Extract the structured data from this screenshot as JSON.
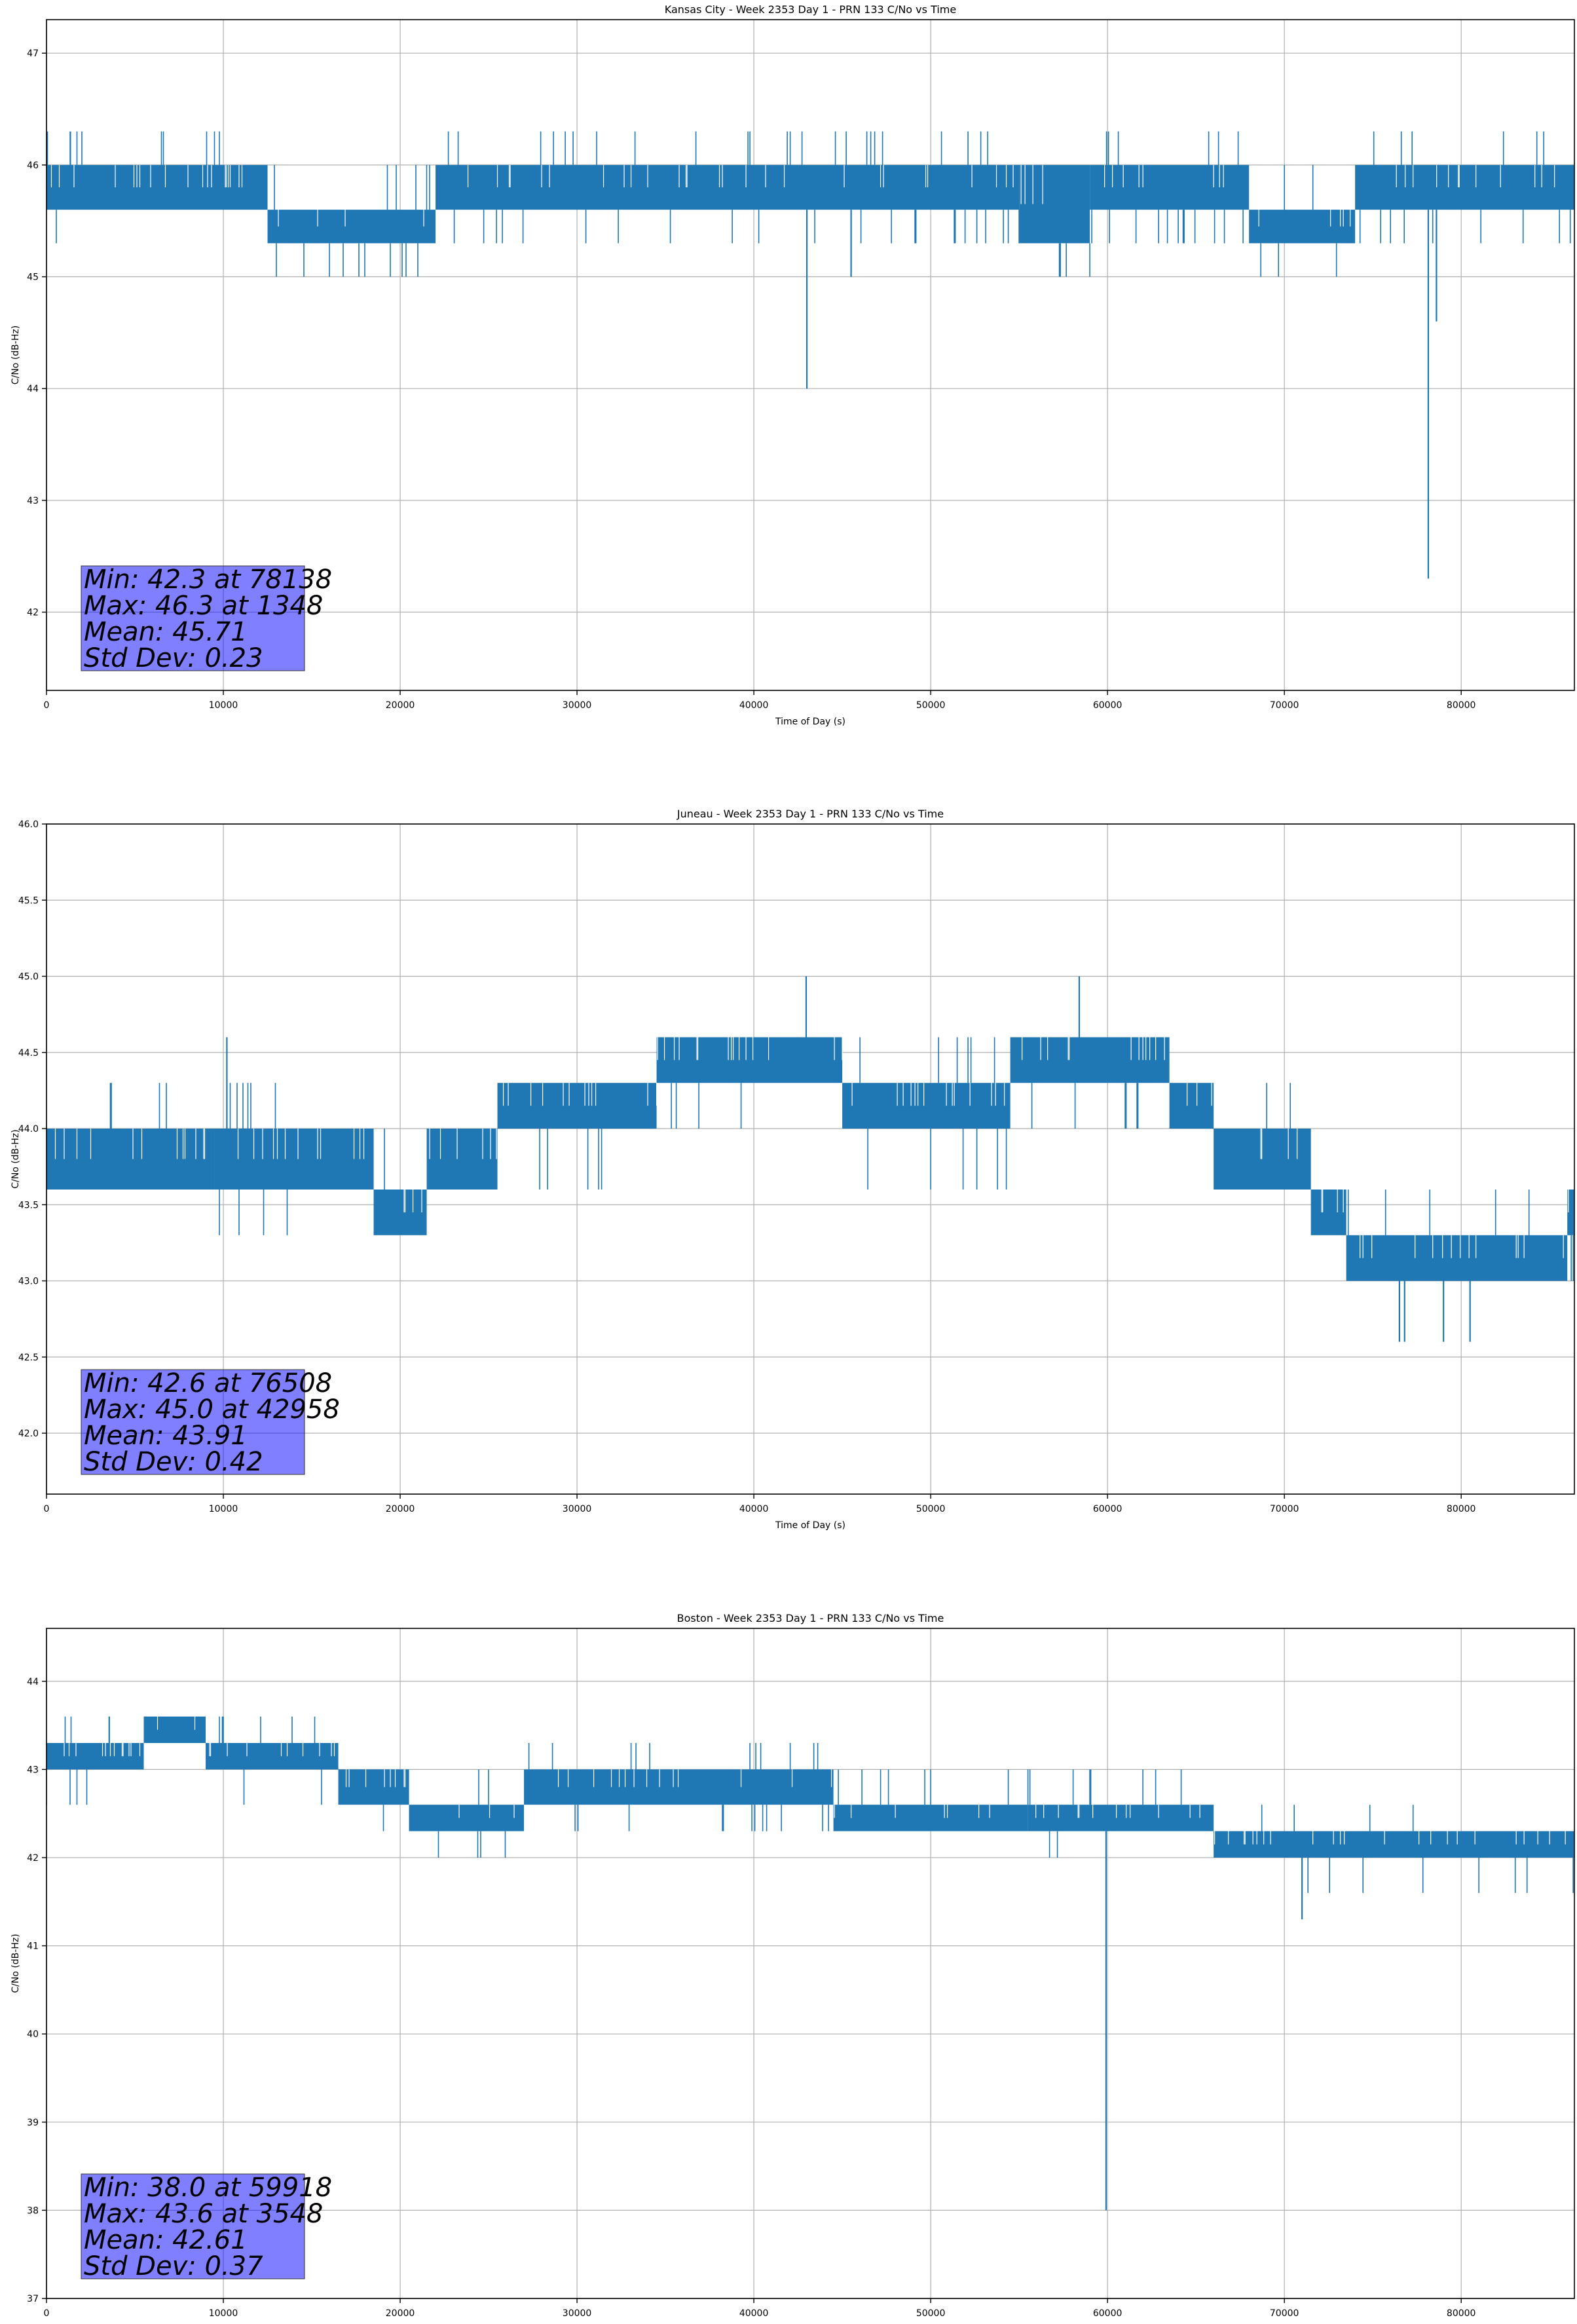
{
  "chart_data": [
    {
      "type": "line",
      "title": "Kansas City - Week 2353 Day 1 - PRN 133 C/No vs Time",
      "xlabel": "Time of Day (s)",
      "ylabel": "C/No (dB-Hz)",
      "xlim": [
        0,
        86400
      ],
      "ylim": [
        41.3,
        47.3
      ],
      "xticks": [
        0,
        10000,
        20000,
        30000,
        40000,
        50000,
        60000,
        70000,
        80000
      ],
      "yticks": [
        42,
        43,
        44,
        45,
        46,
        47
      ],
      "grid": true,
      "color": "#1f77b4",
      "levels": [
        45.3,
        45.6,
        46.0
      ],
      "segments": [
        {
          "x0": 0,
          "x1": 12500,
          "lo": 45.6,
          "hi": 46.0,
          "up": 46.3,
          "down": 45.3
        },
        {
          "x0": 12500,
          "x1": 22000,
          "lo": 45.3,
          "hi": 45.6,
          "up": 46.0,
          "down": 45.0
        },
        {
          "x0": 22000,
          "x1": 55000,
          "lo": 45.6,
          "hi": 46.0,
          "up": 46.3,
          "down": 45.3
        },
        {
          "x0": 55000,
          "x1": 59000,
          "lo": 45.3,
          "hi": 46.0,
          "up": 46.0,
          "down": 45.0
        },
        {
          "x0": 59000,
          "x1": 68000,
          "lo": 45.6,
          "hi": 46.0,
          "up": 46.3,
          "down": 45.3
        },
        {
          "x0": 68000,
          "x1": 74000,
          "lo": 45.3,
          "hi": 45.6,
          "up": 46.0,
          "down": 45.0
        },
        {
          "x0": 74000,
          "x1": 86400,
          "lo": 45.6,
          "hi": 46.0,
          "up": 46.3,
          "down": 45.3
        }
      ],
      "spikes": [
        {
          "x": 1348,
          "y": 46.3
        },
        {
          "x": 43000,
          "y": 44.0
        },
        {
          "x": 45500,
          "y": 45.0
        },
        {
          "x": 78138,
          "y": 42.3
        },
        {
          "x": 78600,
          "y": 44.6
        }
      ],
      "stats": {
        "min": "Min: 42.3 at 78138",
        "max": "Max: 46.3 at 1348",
        "mean": "Mean: 45.71",
        "std": "Std Dev: 0.23"
      }
    },
    {
      "type": "line",
      "title": "Juneau - Week 2353 Day 1 - PRN 133 C/No vs Time",
      "xlabel": "Time of Day (s)",
      "ylabel": "C/No (dB-Hz)",
      "xlim": [
        0,
        86400
      ],
      "ylim": [
        41.6,
        46.0
      ],
      "xticks": [
        0,
        10000,
        20000,
        30000,
        40000,
        50000,
        60000,
        70000,
        80000
      ],
      "yticks": [
        42.0,
        42.5,
        43.0,
        43.5,
        44.0,
        44.5,
        45.0,
        45.5,
        46.0
      ],
      "ytick_labels": [
        "42.0",
        "42.5",
        "43.0",
        "43.5",
        "44.0",
        "44.5",
        "45.0",
        "45.5",
        "46.0"
      ],
      "grid": true,
      "color": "#1f77b4",
      "segments": [
        {
          "x0": 0,
          "x1": 9500,
          "lo": 43.6,
          "hi": 44.0,
          "up": 44.3,
          "down": 43.6
        },
        {
          "x0": 9500,
          "x1": 18500,
          "lo": 43.6,
          "hi": 44.0,
          "up": 44.3,
          "down": 43.3
        },
        {
          "x0": 18500,
          "x1": 21500,
          "lo": 43.3,
          "hi": 43.6,
          "up": 44.0,
          "down": 43.3
        },
        {
          "x0": 21500,
          "x1": 25500,
          "lo": 43.6,
          "hi": 44.0,
          "up": 44.0,
          "down": 43.6
        },
        {
          "x0": 25500,
          "x1": 34500,
          "lo": 44.0,
          "hi": 44.3,
          "up": 44.3,
          "down": 43.6
        },
        {
          "x0": 34500,
          "x1": 45000,
          "lo": 44.3,
          "hi": 44.6,
          "up": 44.6,
          "down": 44.0
        },
        {
          "x0": 45000,
          "x1": 54500,
          "lo": 44.0,
          "hi": 44.3,
          "up": 44.6,
          "down": 43.6
        },
        {
          "x0": 54500,
          "x1": 63500,
          "lo": 44.3,
          "hi": 44.6,
          "up": 44.6,
          "down": 44.0
        },
        {
          "x0": 63500,
          "x1": 66000,
          "lo": 44.0,
          "hi": 44.3,
          "up": 44.3,
          "down": 44.0
        },
        {
          "x0": 66000,
          "x1": 71500,
          "lo": 43.6,
          "hi": 44.0,
          "up": 44.3,
          "down": 43.6
        },
        {
          "x0": 71500,
          "x1": 73500,
          "lo": 43.3,
          "hi": 43.6,
          "up": 43.6,
          "down": 43.3
        },
        {
          "x0": 73500,
          "x1": 86000,
          "lo": 43.0,
          "hi": 43.3,
          "up": 43.6,
          "down": 43.0
        },
        {
          "x0": 86000,
          "x1": 86400,
          "lo": 43.3,
          "hi": 43.6,
          "up": 43.6,
          "down": 43.0
        }
      ],
      "spikes": [
        {
          "x": 10200,
          "y": 44.6
        },
        {
          "x": 42958,
          "y": 45.0
        },
        {
          "x": 58400,
          "y": 45.0
        },
        {
          "x": 76508,
          "y": 42.6
        },
        {
          "x": 76800,
          "y": 42.6
        },
        {
          "x": 79000,
          "y": 42.6
        },
        {
          "x": 80500,
          "y": 42.6
        }
      ],
      "stats": {
        "min": "Min: 42.6 at 76508",
        "max": "Max: 45.0 at 42958",
        "mean": "Mean: 43.91",
        "std": "Std Dev: 0.42"
      }
    },
    {
      "type": "line",
      "title": "Boston - Week 2353 Day 1 - PRN 133 C/No vs Time",
      "xlabel": "Time of Day (s)",
      "ylabel": "C/No (dB-Hz)",
      "xlim": [
        0,
        86400
      ],
      "ylim": [
        37.0,
        44.6
      ],
      "xticks": [
        0,
        10000,
        20000,
        30000,
        40000,
        50000,
        60000,
        70000,
        80000
      ],
      "yticks": [
        37,
        38,
        39,
        40,
        41,
        42,
        43,
        44
      ],
      "grid": true,
      "color": "#1f77b4",
      "segments": [
        {
          "x0": 0,
          "x1": 5500,
          "lo": 43.0,
          "hi": 43.3,
          "up": 43.6,
          "down": 42.6
        },
        {
          "x0": 5500,
          "x1": 9000,
          "lo": 43.3,
          "hi": 43.6,
          "up": 43.6,
          "down": 43.0
        },
        {
          "x0": 9000,
          "x1": 16500,
          "lo": 43.0,
          "hi": 43.3,
          "up": 43.6,
          "down": 42.6
        },
        {
          "x0": 16500,
          "x1": 20500,
          "lo": 42.6,
          "hi": 43.0,
          "up": 43.0,
          "down": 42.3
        },
        {
          "x0": 20500,
          "x1": 27000,
          "lo": 42.3,
          "hi": 42.6,
          "up": 43.0,
          "down": 42.0
        },
        {
          "x0": 27000,
          "x1": 44500,
          "lo": 42.6,
          "hi": 43.0,
          "up": 43.3,
          "down": 42.3
        },
        {
          "x0": 44500,
          "x1": 55500,
          "lo": 42.3,
          "hi": 42.6,
          "up": 43.0,
          "down": 42.3
        },
        {
          "x0": 55500,
          "x1": 66000,
          "lo": 42.3,
          "hi": 42.6,
          "up": 43.0,
          "down": 42.0
        },
        {
          "x0": 66000,
          "x1": 86400,
          "lo": 42.0,
          "hi": 42.3,
          "up": 42.6,
          "down": 41.6
        }
      ],
      "spikes": [
        {
          "x": 3548,
          "y": 43.6
        },
        {
          "x": 59918,
          "y": 38.0
        },
        {
          "x": 71000,
          "y": 41.3
        }
      ],
      "stats": {
        "min": "Min: 38.0 at 59918",
        "max": "Max: 43.6 at 3548",
        "mean": "Mean: 42.61",
        "std": "Std Dev: 0.37"
      }
    }
  ]
}
